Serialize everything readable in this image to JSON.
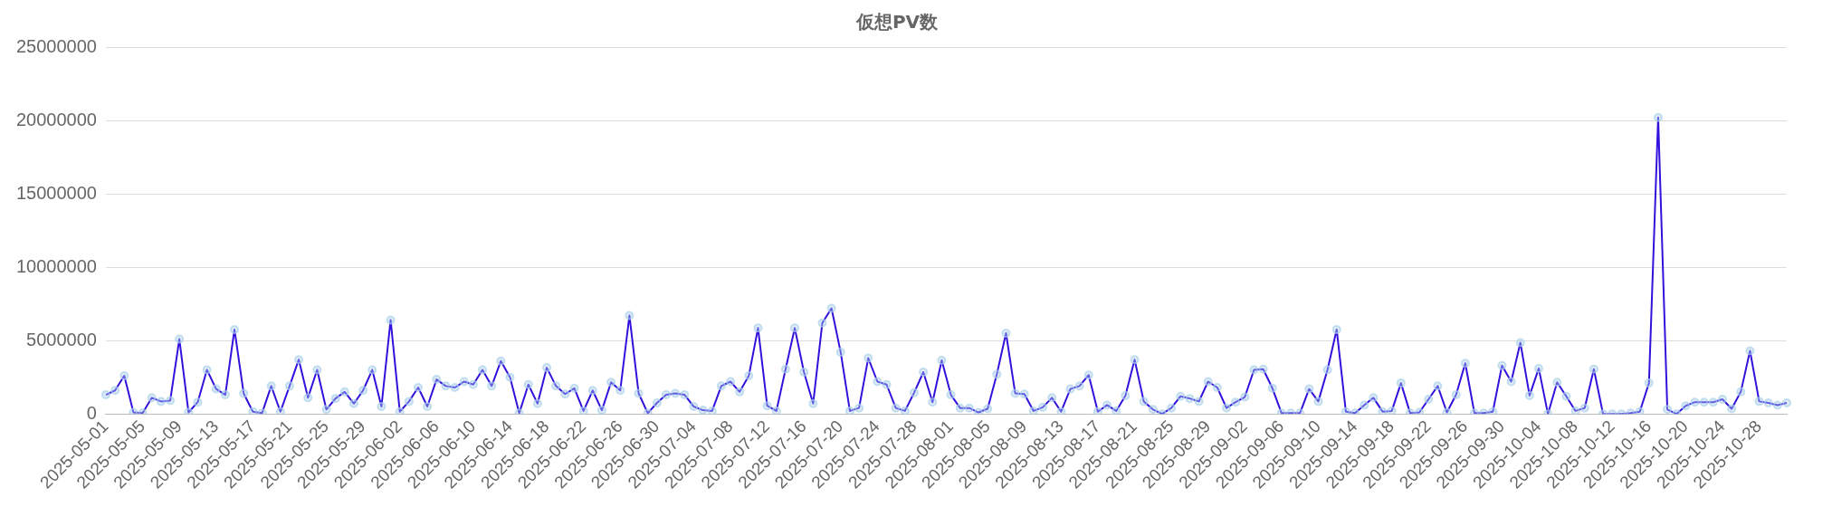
{
  "chart_data": {
    "type": "line",
    "title": "仮想PV数",
    "categories": [
      "2025-05-01",
      null,
      null,
      null,
      "2025-05-05",
      null,
      null,
      null,
      "2025-05-09",
      null,
      null,
      null,
      "2025-05-13",
      null,
      null,
      null,
      "2025-05-17",
      null,
      null,
      null,
      "2025-05-21",
      null,
      null,
      null,
      "2025-05-25",
      null,
      null,
      null,
      "2025-05-29",
      null,
      null,
      null,
      "2025-06-02",
      null,
      null,
      null,
      "2025-06-06",
      null,
      null,
      null,
      "2025-06-10",
      null,
      null,
      null,
      "2025-06-14",
      null,
      null,
      null,
      "2025-06-18",
      null,
      null,
      null,
      "2025-06-22",
      null,
      null,
      null,
      "2025-06-26",
      null,
      null,
      null,
      "2025-06-30",
      null,
      null,
      null,
      "2025-07-04",
      null,
      null,
      null,
      "2025-07-08",
      null,
      null,
      null,
      "2025-07-12",
      null,
      null,
      null,
      "2025-07-16",
      null,
      null,
      null,
      "2025-07-20",
      null,
      null,
      null,
      "2025-07-24",
      null,
      null,
      null,
      "2025-07-28",
      null,
      null,
      null,
      "2025-08-01",
      null,
      null,
      null,
      "2025-08-05",
      null,
      null,
      null,
      "2025-08-09",
      null,
      null,
      null,
      "2025-08-13",
      null,
      null,
      null,
      "2025-08-17",
      null,
      null,
      null,
      "2025-08-21",
      null,
      null,
      null,
      "2025-08-25",
      null,
      null,
      null,
      "2025-08-29",
      null,
      null,
      null,
      "2025-09-02",
      null,
      null,
      null,
      "2025-09-06",
      null,
      null,
      null,
      "2025-09-10",
      null,
      null,
      null,
      "2025-09-14",
      null,
      null,
      null,
      "2025-09-18",
      null,
      null,
      null,
      "2025-09-22",
      null,
      null,
      null,
      "2025-09-26",
      null,
      null,
      null,
      "2025-09-30",
      null,
      null,
      null,
      "2025-10-04",
      null,
      null,
      null,
      "2025-10-08",
      null,
      null,
      null,
      "2025-10-12",
      null,
      null,
      null,
      "2025-10-16",
      null,
      null,
      null,
      "2025-10-20",
      null,
      null,
      null,
      "2025-10-24",
      null,
      null,
      null,
      "2025-10-28",
      null,
      null,
      null
    ],
    "series": [
      {
        "color": "#3311dd",
        "values": [
          1300000,
          1600000,
          2600000,
          100000,
          50000,
          1100000,
          850000,
          900000,
          5100000,
          100000,
          800000,
          3000000,
          1700000,
          1300000,
          5750000,
          1400000,
          150000,
          50000,
          1900000,
          150000,
          1900000,
          3700000,
          1100000,
          3000000,
          300000,
          1050000,
          1500000,
          700000,
          1600000,
          3000000,
          500000,
          6400000,
          150000,
          850000,
          1800000,
          500000,
          2350000,
          1900000,
          1800000,
          2200000,
          2000000,
          3000000,
          1900000,
          3600000,
          2500000,
          50000,
          2000000,
          700000,
          3150000,
          1900000,
          1350000,
          1750000,
          200000,
          1600000,
          250000,
          2150000,
          1600000,
          6700000,
          1400000,
          50000,
          750000,
          1300000,
          1400000,
          1300000,
          500000,
          250000,
          200000,
          1900000,
          2200000,
          1500000,
          2600000,
          5850000,
          550000,
          200000,
          3050000,
          5850000,
          2850000,
          700000,
          6200000,
          7200000,
          4200000,
          200000,
          400000,
          3800000,
          2200000,
          2000000,
          400000,
          200000,
          1450000,
          2850000,
          800000,
          3650000,
          1300000,
          400000,
          400000,
          100000,
          350000,
          2700000,
          5500000,
          1400000,
          1350000,
          200000,
          450000,
          1100000,
          150000,
          1700000,
          1900000,
          2650000,
          150000,
          600000,
          200000,
          1250000,
          3700000,
          850000,
          300000,
          0,
          400000,
          1200000,
          1050000,
          850000,
          2200000,
          1800000,
          400000,
          800000,
          1150000,
          3000000,
          3050000,
          1750000,
          50000,
          50000,
          50000,
          1700000,
          850000,
          3000000,
          5750000,
          150000,
          50000,
          600000,
          1100000,
          150000,
          200000,
          2100000,
          50000,
          100000,
          1000000,
          1900000,
          100000,
          1300000,
          3450000,
          50000,
          50000,
          150000,
          3300000,
          2200000,
          4850000,
          1250000,
          3100000,
          0,
          2150000,
          1200000,
          200000,
          400000,
          3050000,
          0,
          0,
          0,
          50000,
          150000,
          2100000,
          20200000,
          300000,
          0,
          550000,
          800000,
          800000,
          800000,
          1000000,
          350000,
          1500000,
          4300000,
          850000,
          750000,
          600000,
          750000
        ]
      }
    ],
    "ylim": [
      0,
      25000000
    ],
    "yticks": [
      0,
      5000000,
      10000000,
      15000000,
      20000000,
      25000000
    ],
    "grid": "y",
    "legend": false,
    "marker": "circle",
    "line_style": "solid"
  }
}
